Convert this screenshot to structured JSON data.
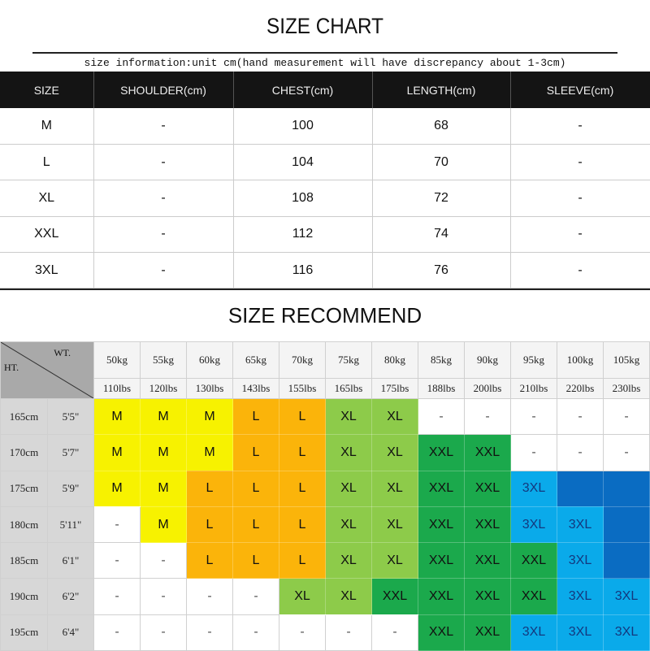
{
  "title": "SIZE CHART",
  "note": "size information:unit cm(hand measurement will have discrepancy about 1-3cm)",
  "size_chart": {
    "headers": [
      "SIZE",
      "SHOULDER(cm)",
      "CHEST(cm)",
      "LENGTH(cm)",
      "SLEEVE(cm)"
    ],
    "rows": [
      [
        "M",
        "-",
        "100",
        "68",
        "-"
      ],
      [
        "L",
        "-",
        "104",
        "70",
        "-"
      ],
      [
        "XL",
        "-",
        "108",
        "72",
        "-"
      ],
      [
        "XXL",
        "-",
        "112",
        "74",
        "-"
      ],
      [
        "3XL",
        "-",
        "116",
        "76",
        "-"
      ]
    ]
  },
  "recommend": {
    "title": "SIZE RECOMMEND",
    "wt_label": "WT.",
    "ht_label": "HT.",
    "kg": [
      "50kg",
      "55kg",
      "60kg",
      "65kg",
      "70kg",
      "75kg",
      "80kg",
      "85kg",
      "90kg",
      "95kg",
      "100kg",
      "105kg"
    ],
    "lbs": [
      "110lbs",
      "120lbs",
      "130lbs",
      "143lbs",
      "155lbs",
      "165lbs",
      "175lbs",
      "188lbs",
      "200lbs",
      "210lbs",
      "220lbs",
      "230lbs"
    ],
    "heights": [
      [
        "165cm",
        "5'5\""
      ],
      [
        "170cm",
        "5'7\""
      ],
      [
        "175cm",
        "5'9\""
      ],
      [
        "180cm",
        "5'11\""
      ],
      [
        "185cm",
        "6'1\""
      ],
      [
        "190cm",
        "6'2\""
      ],
      [
        "195cm",
        "6'4\""
      ]
    ],
    "grid": [
      [
        "M",
        "M",
        "M",
        "L",
        "L",
        "XL",
        "XL",
        "-",
        "-",
        "-",
        "-",
        "-"
      ],
      [
        "M",
        "M",
        "M",
        "L",
        "L",
        "XL",
        "XL",
        "XXL",
        "XXL",
        "-",
        "-",
        "-"
      ],
      [
        "M",
        "M",
        "L",
        "L",
        "L",
        "XL",
        "XL",
        "XXL",
        "XXL",
        "3XL",
        "",
        ""
      ],
      [
        "-",
        "M",
        "L",
        "L",
        "L",
        "XL",
        "XL",
        "XXL",
        "XXL",
        "3XL",
        "3XL",
        ""
      ],
      [
        "-",
        "-",
        "L",
        "L",
        "L",
        "XL",
        "XL",
        "XXL",
        "XXL",
        "XXL",
        "3XL",
        ""
      ],
      [
        "-",
        "-",
        "-",
        "-",
        "XL",
        "XL",
        "XXL",
        "XXL",
        "XXL",
        "XXL",
        "3XL",
        "3XL"
      ],
      [
        "-",
        "-",
        "-",
        "-",
        "-",
        "-",
        "-",
        "XXL",
        "XXL",
        "3XL",
        "3XL",
        "3XL"
      ]
    ],
    "colors": {
      "M": "#f7f200",
      "L": "#fbb40a",
      "XL": "#8dcb4a",
      "XXL": "#1ba94c",
      "3XL": "#0aaaea",
      "": "#0a6cc2",
      "-": "#ffffff"
    },
    "text_colors": {
      "3XL": "#14387e",
      "-": "#555555"
    }
  }
}
